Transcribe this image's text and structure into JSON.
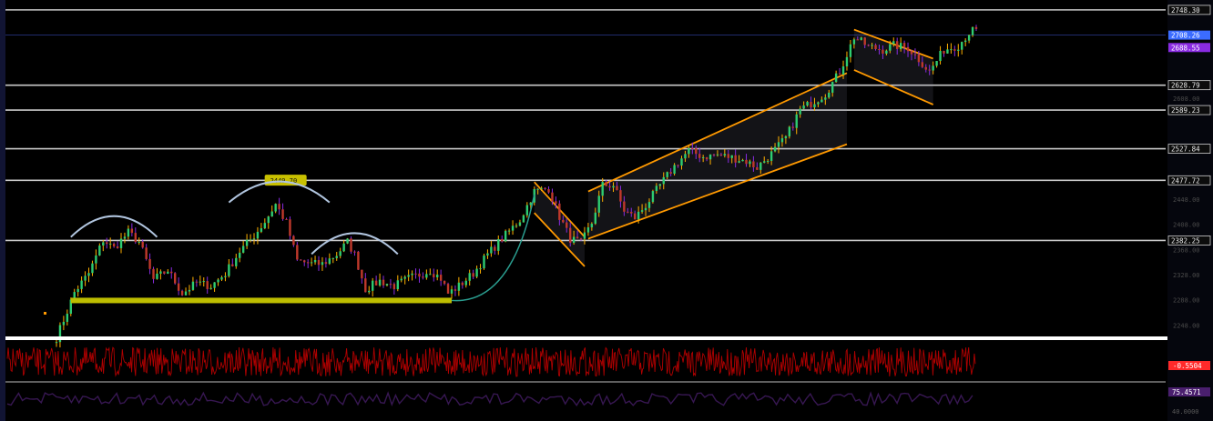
{
  "chart_data": {
    "type": "candlestick",
    "title": "",
    "xlabel": "",
    "ylabel": "",
    "ylim": [
      2227,
      2764
    ],
    "price_scale_ticks": [
      2248.0,
      2288.0,
      2328.0,
      2368.0,
      2408.0,
      2448.0,
      2528.0,
      2588.0,
      2608.0
    ],
    "horizontal_levels": [
      {
        "label": "2748.30",
        "value": 2748.3
      },
      {
        "label": "2628.79",
        "value": 2628.79
      },
      {
        "label": "2589.23",
        "value": 2589.23
      },
      {
        "label": "2527.84",
        "value": 2527.84
      },
      {
        "label": "2477.72",
        "value": 2477.72
      },
      {
        "label": "2382.25",
        "value": 2382.25
      }
    ],
    "current_price": {
      "label": "2708.26",
      "value": 2708.26,
      "color": "#3b6cff"
    },
    "secondary_price": {
      "label": "2688.55",
      "value": 2688.55,
      "color": "#8a2be2"
    },
    "price_path": [
      [
        0,
        2228
      ],
      [
        3,
        2270
      ],
      [
        5,
        2300
      ],
      [
        9,
        2330
      ],
      [
        13,
        2383
      ],
      [
        16,
        2370
      ],
      [
        20,
        2395
      ],
      [
        23,
        2380
      ],
      [
        27,
        2320
      ],
      [
        31,
        2335
      ],
      [
        35,
        2298
      ],
      [
        39,
        2315
      ],
      [
        43,
        2310
      ],
      [
        47,
        2330
      ],
      [
        51,
        2365
      ],
      [
        55,
        2390
      ],
      [
        58,
        2412
      ],
      [
        61,
        2440
      ],
      [
        64,
        2410
      ],
      [
        67,
        2350
      ],
      [
        71,
        2345
      ],
      [
        74,
        2345
      ],
      [
        78,
        2360
      ],
      [
        81,
        2380
      ],
      [
        83,
        2360
      ],
      [
        86,
        2305
      ],
      [
        90,
        2318
      ],
      [
        94,
        2310
      ],
      [
        98,
        2322
      ],
      [
        102,
        2330
      ],
      [
        104,
        2335
      ],
      [
        107,
        2322
      ],
      [
        109,
        2298
      ],
      [
        112,
        2310
      ],
      [
        116,
        2330
      ],
      [
        120,
        2360
      ],
      [
        124,
        2385
      ],
      [
        129,
        2415
      ],
      [
        133,
        2460
      ],
      [
        137,
        2465
      ],
      [
        140,
        2420
      ],
      [
        143,
        2385
      ],
      [
        146,
        2378
      ],
      [
        149,
        2410
      ],
      [
        152,
        2470
      ],
      [
        155,
        2470
      ],
      [
        158,
        2430
      ],
      [
        161,
        2418
      ],
      [
        164,
        2438
      ],
      [
        168,
        2470
      ],
      [
        172,
        2500
      ],
      [
        176,
        2525
      ],
      [
        180,
        2515
      ],
      [
        184,
        2518
      ],
      [
        188,
        2514
      ],
      [
        192,
        2508
      ],
      [
        195,
        2498
      ],
      [
        199,
        2520
      ],
      [
        203,
        2545
      ],
      [
        207,
        2590
      ],
      [
        210,
        2600
      ],
      [
        214,
        2615
      ],
      [
        218,
        2650
      ],
      [
        222,
        2705
      ],
      [
        226,
        2690
      ],
      [
        230,
        2685
      ],
      [
        233,
        2692
      ],
      [
        237,
        2688
      ],
      [
        240,
        2670
      ],
      [
        243,
        2650
      ],
      [
        247,
        2685
      ],
      [
        251,
        2692
      ],
      [
        254,
        2712
      ],
      [
        256,
        2718
      ]
    ],
    "annotations": [
      {
        "type": "price-tag",
        "label": "2449.70",
        "color": "#c8c000"
      },
      {
        "type": "support-line",
        "color": "#bdbd00",
        "from_x": 4,
        "to_x": 110,
        "value": 2287
      },
      {
        "type": "arc",
        "color": "#b0c4de",
        "center_x": 16,
        "value": 2405,
        "width": 12
      },
      {
        "type": "arc",
        "color": "#b0c4de",
        "center_x": 62,
        "value": 2460,
        "width": 14
      },
      {
        "type": "arc",
        "color": "#b0c4de",
        "center_x": 83,
        "value": 2378,
        "width": 12
      },
      {
        "type": "curve",
        "color": "#2a9d8f",
        "from": [
          110,
          2287
        ],
        "to": [
          133,
          2455
        ]
      },
      {
        "type": "channel",
        "color": "#ff9900",
        "name": "falling channel",
        "points": [
          [
            133,
            2475
          ],
          [
            147,
            2388
          ],
          [
            133,
            2426
          ],
          [
            147,
            2341
          ]
        ]
      },
      {
        "type": "channel",
        "color": "#ff9900",
        "name": "rising channel",
        "points": [
          [
            148,
            2460
          ],
          [
            220,
            2648
          ],
          [
            148,
            2385
          ],
          [
            220,
            2535
          ]
        ]
      },
      {
        "type": "channel",
        "color": "#ff9900",
        "name": "flag",
        "points": [
          [
            222,
            2717
          ],
          [
            244,
            2671
          ],
          [
            222,
            2653
          ],
          [
            244,
            2598
          ]
        ]
      }
    ]
  },
  "indicators": [
    {
      "name": "",
      "value_label": "-0.5504",
      "badge_color": "#ff2a2a",
      "line_color": "#b00000",
      "ylim": [
        -2,
        2
      ]
    },
    {
      "name": "",
      "value_label": "75.4571",
      "badge_color": "#4a1f6e",
      "line_color": "#4a1f6e",
      "ylim": [
        30,
        90
      ],
      "tick_labels": [
        "40.0000"
      ]
    }
  ],
  "colors": {
    "up": "#2ecc71",
    "down": "#c0392b",
    "wick_up": "#ffb000",
    "wick_down": "#8a2be2",
    "level_line": "#c9c9c9"
  }
}
